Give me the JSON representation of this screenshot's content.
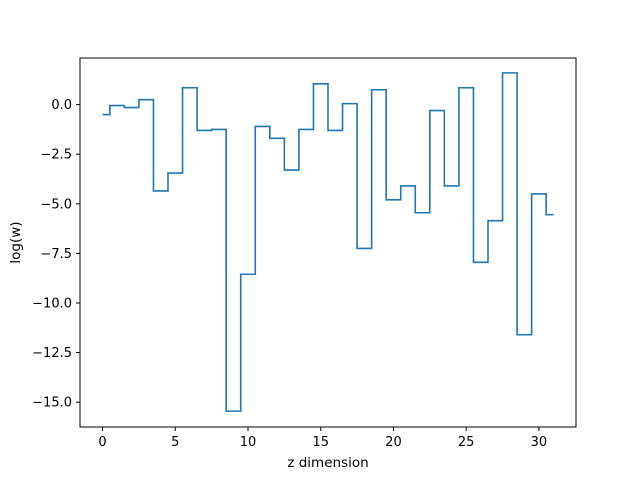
{
  "chart_data": {
    "type": "line",
    "drawstyle": "steps-mid",
    "title": "",
    "xlabel": "z dimension",
    "ylabel": "log(w)",
    "xlim": [
      -1.55,
      32.55
    ],
    "ylim": [
      -16.25,
      2.35
    ],
    "xticks": [
      0,
      5,
      10,
      15,
      20,
      25,
      30
    ],
    "yticks": [
      0.0,
      -2.5,
      -5.0,
      -7.5,
      -10.0,
      -12.5,
      -15.0
    ],
    "xtick_labels": [
      "0",
      "5",
      "10",
      "15",
      "20",
      "25",
      "30"
    ],
    "ytick_labels": [
      "0.0",
      "−2.5",
      "−5.0",
      "−7.5",
      "−10.0",
      "−12.5",
      "−15.0"
    ],
    "grid": false,
    "series": [
      {
        "color": "#1f77b4",
        "x": [
          0,
          1,
          2,
          3,
          4,
          5,
          6,
          7,
          8,
          9,
          10,
          11,
          12,
          13,
          14,
          15,
          16,
          17,
          18,
          19,
          20,
          21,
          22,
          23,
          24,
          25,
          26,
          27,
          28,
          29,
          30,
          31
        ],
        "y": [
          -0.5,
          -0.05,
          -0.15,
          0.25,
          -4.35,
          -3.45,
          0.85,
          -1.3,
          -1.25,
          -15.45,
          -8.55,
          -1.1,
          -1.7,
          -3.3,
          -1.25,
          1.05,
          -1.3,
          0.05,
          -7.25,
          0.75,
          -4.8,
          -4.1,
          -5.45,
          -0.3,
          -4.1,
          0.85,
          -7.95,
          -5.85,
          1.6,
          -11.6,
          -4.5,
          -5.55
        ]
      }
    ]
  }
}
